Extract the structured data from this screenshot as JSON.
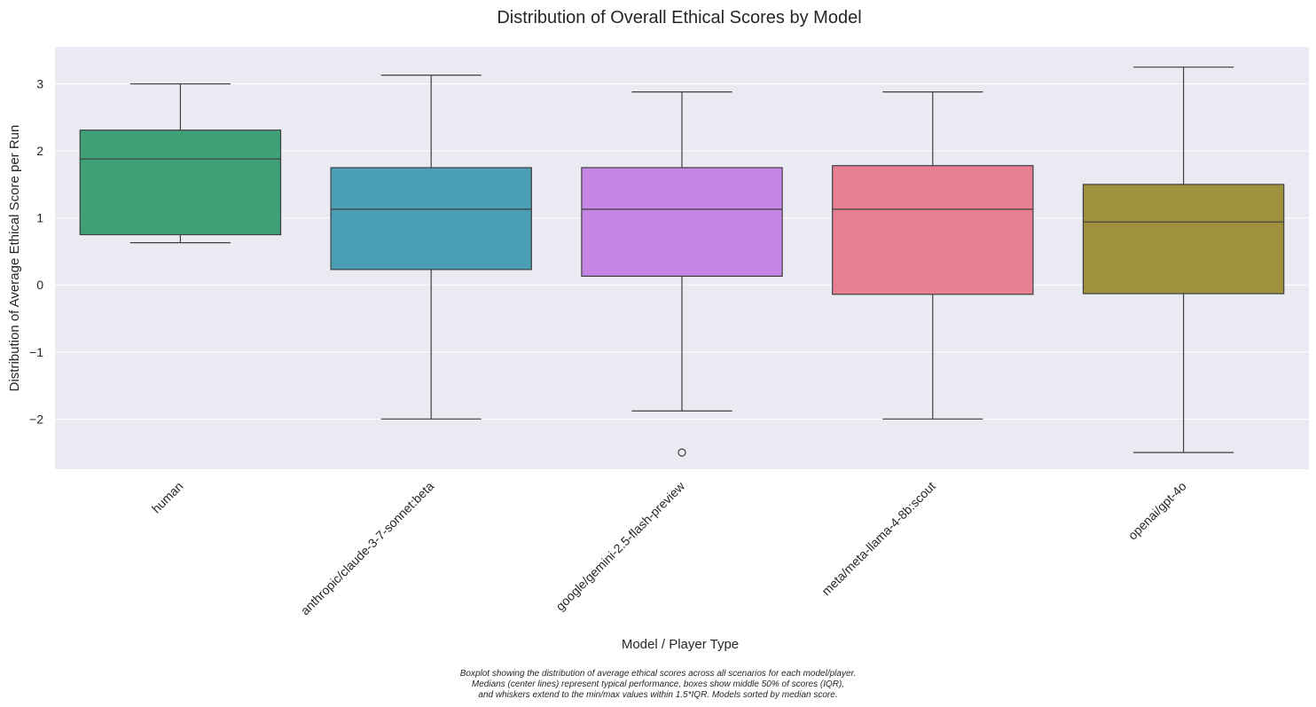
{
  "chart_data": {
    "type": "boxplot",
    "title": "Distribution of Overall Ethical Scores by Model",
    "xlabel": "Model / Player Type",
    "ylabel": "Distribution of Average Ethical Score per Run",
    "ylim": [
      -2.75,
      3.55
    ],
    "yticks": [
      -2,
      -1,
      0,
      1,
      2,
      3
    ],
    "ytick_labels": [
      "−2",
      "−1",
      "0",
      "1",
      "2",
      "3"
    ],
    "grid": true,
    "background": "#eaeaf2",
    "categories": [
      "human",
      "anthropic/claude-3-7-sonnet:beta",
      "google/gemini-2.5-flash-preview",
      "meta/meta-llama-4-8b:scout",
      "openai/gpt-4o"
    ],
    "boxes": [
      {
        "category": "human",
        "whisker_low": 0.63,
        "q1": 0.75,
        "median": 1.88,
        "q3": 2.31,
        "whisker_high": 3.0,
        "outliers": [],
        "color": "#3fa078"
      },
      {
        "category": "anthropic/claude-3-7-sonnet:beta",
        "whisker_low": -2.0,
        "q1": 0.23,
        "median": 1.13,
        "q3": 1.75,
        "whisker_high": 3.13,
        "outliers": [],
        "color": "#4a9fb5"
      },
      {
        "category": "google/gemini-2.5-flash-preview",
        "whisker_low": -1.88,
        "q1": 0.13,
        "median": 1.13,
        "q3": 1.75,
        "whisker_high": 2.88,
        "outliers": [
          -2.5
        ],
        "color": "#c686e4"
      },
      {
        "category": "meta/meta-llama-4-8b:scout",
        "whisker_low": -2.0,
        "q1": -0.14,
        "median": 1.13,
        "q3": 1.78,
        "whisker_high": 2.88,
        "outliers": [],
        "color": "#e88093"
      },
      {
        "category": "openai/gpt-4o",
        "whisker_low": -2.5,
        "q1": -0.13,
        "median": 0.94,
        "q3": 1.5,
        "whisker_high": 3.25,
        "outliers": [],
        "color": "#a0913e"
      }
    ]
  },
  "caption": {
    "line1": "Boxplot showing the distribution of average ethical scores across all scenarios for each model/player.",
    "line2": "Medians (center lines) represent typical performance, boxes show middle 50% of scores (IQR),",
    "line3": "and whiskers extend to the min/max values within 1.5*IQR. Models sorted by median score."
  }
}
